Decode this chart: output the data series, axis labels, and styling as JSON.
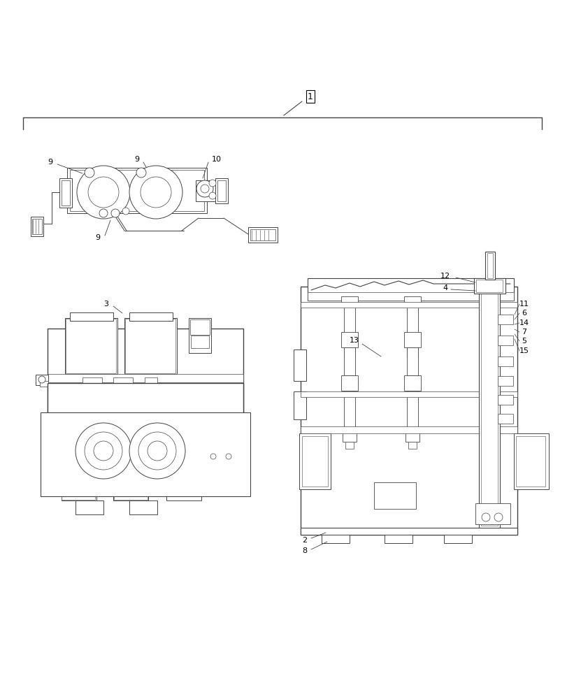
{
  "bg_color": "#ffffff",
  "lc": "#444444",
  "lw": 0.7,
  "lw2": 1.0,
  "figsize": [
    8.12,
    10.0
  ],
  "dpi": 100,
  "xlim": [
    0,
    812
  ],
  "ylim": [
    0,
    1000
  ]
}
